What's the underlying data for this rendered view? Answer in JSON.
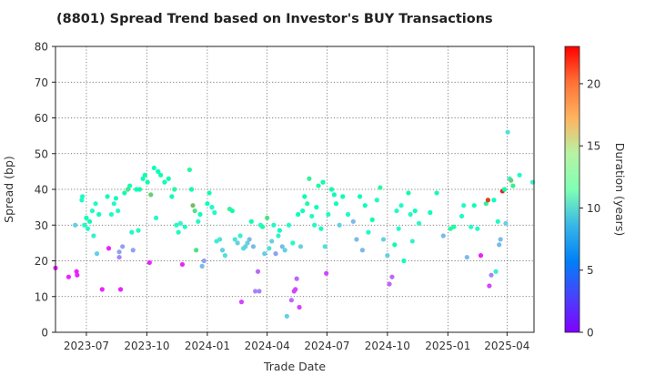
{
  "chart_data": {
    "type": "scatter",
    "title": "(8801)   Spread Trend based on Investor's BUY Transactions",
    "xlabel": "Trade Date",
    "ylabel": "Spread (bp)",
    "colorbar_label": "Duration (years)",
    "ylim": [
      0,
      80
    ],
    "xlim": [
      "2023-05-15",
      "2025-05-12"
    ],
    "yticks": [
      0,
      10,
      20,
      30,
      40,
      50,
      60,
      70,
      80
    ],
    "xticks": [
      {
        "date": "2023-07-01",
        "label": "2023-07"
      },
      {
        "date": "2023-10-01",
        "label": "2023-10"
      },
      {
        "date": "2024-01-01",
        "label": "2024-01"
      },
      {
        "date": "2024-04-01",
        "label": "2024-04"
      },
      {
        "date": "2024-07-01",
        "label": "2024-07"
      },
      {
        "date": "2024-10-01",
        "label": "2024-10"
      },
      {
        "date": "2025-01-01",
        "label": "2025-01"
      },
      {
        "date": "2025-04-01",
        "label": "2025-04"
      }
    ],
    "color_range": [
      0,
      23
    ],
    "colorbar_ticks": [
      0,
      5,
      10,
      15,
      20
    ],
    "colormap": "rainbow",
    "grid": true,
    "points": [
      [
        "2023-05-15",
        18,
        1
      ],
      [
        "2023-06-04",
        15.5,
        1
      ],
      [
        "2023-06-14",
        30,
        7
      ],
      [
        "2023-06-16",
        17,
        1
      ],
      [
        "2023-06-17",
        16,
        1
      ],
      [
        "2023-06-24",
        37,
        10
      ],
      [
        "2023-06-25",
        38,
        10
      ],
      [
        "2023-06-28",
        30,
        10
      ],
      [
        "2023-07-01",
        32,
        11
      ],
      [
        "2023-07-03",
        29,
        10
      ],
      [
        "2023-07-06",
        31,
        12
      ],
      [
        "2023-07-10",
        34,
        10
      ],
      [
        "2023-07-12",
        27,
        9
      ],
      [
        "2023-07-15",
        36,
        10
      ],
      [
        "2023-07-17",
        22,
        7
      ],
      [
        "2023-07-20",
        33,
        11
      ],
      [
        "2023-07-25",
        12,
        1
      ],
      [
        "2023-08-02",
        38,
        11
      ],
      [
        "2023-08-04",
        23.5,
        1
      ],
      [
        "2023-08-08",
        33,
        10
      ],
      [
        "2023-08-12",
        36,
        10
      ],
      [
        "2023-08-15",
        37.5,
        11
      ],
      [
        "2023-08-18",
        34,
        10
      ],
      [
        "2023-08-20",
        22.5,
        5
      ],
      [
        "2023-08-20",
        21,
        4
      ],
      [
        "2023-08-22",
        12,
        1
      ],
      [
        "2023-08-25",
        24,
        5
      ],
      [
        "2023-08-28",
        39,
        12
      ],
      [
        "2023-09-02",
        40,
        15
      ],
      [
        "2023-09-05",
        41,
        11
      ],
      [
        "2023-09-08",
        28,
        10
      ],
      [
        "2023-09-10",
        23,
        5
      ],
      [
        "2023-09-15",
        40,
        11
      ],
      [
        "2023-09-18",
        28.5,
        10
      ],
      [
        "2023-09-20",
        40,
        12
      ],
      [
        "2023-09-25",
        43,
        11
      ],
      [
        "2023-09-28",
        44,
        12
      ],
      [
        "2023-10-02",
        42,
        12
      ],
      [
        "2023-10-05",
        19.5,
        1
      ],
      [
        "2023-10-07",
        38.5,
        16
      ],
      [
        "2023-10-12",
        46,
        11
      ],
      [
        "2023-10-15",
        32,
        10
      ],
      [
        "2023-10-18",
        45,
        11
      ],
      [
        "2023-10-22",
        44,
        12
      ],
      [
        "2023-10-28",
        42,
        11
      ],
      [
        "2023-11-03",
        43,
        12
      ],
      [
        "2023-11-08",
        38,
        11
      ],
      [
        "2023-11-12",
        40,
        13
      ],
      [
        "2023-11-15",
        30,
        10
      ],
      [
        "2023-11-18",
        28,
        10
      ],
      [
        "2023-11-21",
        30.5,
        9
      ],
      [
        "2023-11-24",
        19,
        1
      ],
      [
        "2023-11-28",
        29.5,
        10
      ],
      [
        "2023-12-05",
        45.5,
        13
      ],
      [
        "2023-12-08",
        40,
        12
      ],
      [
        "2023-12-10",
        35.5,
        17
      ],
      [
        "2023-12-13",
        34,
        15
      ],
      [
        "2023-12-15",
        23,
        15
      ],
      [
        "2023-12-18",
        31,
        10
      ],
      [
        "2023-12-21",
        33,
        11
      ],
      [
        "2023-12-24",
        18.5,
        6
      ],
      [
        "2023-12-27",
        20,
        5
      ],
      [
        "2024-01-01",
        36,
        11
      ],
      [
        "2024-01-04",
        39,
        12
      ],
      [
        "2024-01-08",
        35,
        10
      ],
      [
        "2024-01-12",
        33.5,
        10
      ],
      [
        "2024-01-15",
        25.5,
        9
      ],
      [
        "2024-01-20",
        26,
        8
      ],
      [
        "2024-01-24",
        23,
        7
      ],
      [
        "2024-01-28",
        21.5,
        8
      ],
      [
        "2024-02-04",
        34.5,
        14
      ],
      [
        "2024-02-08",
        34,
        12
      ],
      [
        "2024-02-12",
        26,
        8
      ],
      [
        "2024-02-16",
        25,
        7
      ],
      [
        "2024-02-20",
        27,
        9
      ],
      [
        "2024-02-22",
        8.5,
        2
      ],
      [
        "2024-02-25",
        23.5,
        8
      ],
      [
        "2024-02-28",
        24,
        7
      ],
      [
        "2024-03-02",
        25,
        7
      ],
      [
        "2024-03-05",
        26,
        6
      ],
      [
        "2024-03-08",
        31,
        12
      ],
      [
        "2024-03-11",
        24,
        6
      ],
      [
        "2024-03-14",
        11.5,
        4
      ],
      [
        "2024-03-18",
        17,
        3
      ],
      [
        "2024-03-20",
        11.5,
        4
      ],
      [
        "2024-03-22",
        30,
        10
      ],
      [
        "2024-03-25",
        29.5,
        13
      ],
      [
        "2024-03-28",
        22,
        7
      ],
      [
        "2024-04-01",
        32,
        15
      ],
      [
        "2024-04-04",
        23.5,
        8
      ],
      [
        "2024-04-08",
        25.5,
        7
      ],
      [
        "2024-04-11",
        30,
        10
      ],
      [
        "2024-04-14",
        22,
        5
      ],
      [
        "2024-04-18",
        27,
        9
      ],
      [
        "2024-04-20",
        28.5,
        11
      ],
      [
        "2024-04-24",
        24,
        6
      ],
      [
        "2024-04-28",
        23,
        7
      ],
      [
        "2024-05-01",
        4.5,
        7
      ],
      [
        "2024-05-04",
        30,
        10
      ],
      [
        "2024-05-08",
        9,
        3
      ],
      [
        "2024-05-10",
        25,
        10
      ],
      [
        "2024-05-12",
        11.5,
        2
      ],
      [
        "2024-05-14",
        12,
        2
      ],
      [
        "2024-05-16",
        15,
        3
      ],
      [
        "2024-05-18",
        33,
        11
      ],
      [
        "2024-05-20",
        7,
        2
      ],
      [
        "2024-05-22",
        24,
        7
      ],
      [
        "2024-05-25",
        34,
        11
      ],
      [
        "2024-05-28",
        38,
        12
      ],
      [
        "2024-06-01",
        36,
        13
      ],
      [
        "2024-06-04",
        43,
        14
      ],
      [
        "2024-06-08",
        32.5,
        10
      ],
      [
        "2024-06-12",
        30,
        10
      ],
      [
        "2024-06-15",
        35,
        11
      ],
      [
        "2024-06-18",
        41,
        13
      ],
      [
        "2024-06-22",
        29,
        11
      ],
      [
        "2024-06-25",
        42,
        12
      ],
      [
        "2024-06-28",
        24,
        8
      ],
      [
        "2024-06-30",
        16.5,
        2
      ],
      [
        "2024-07-03",
        33,
        10
      ],
      [
        "2024-07-08",
        40,
        12
      ],
      [
        "2024-07-12",
        38.5,
        11
      ],
      [
        "2024-07-15",
        36,
        11
      ],
      [
        "2024-07-20",
        30,
        7
      ],
      [
        "2024-07-25",
        38,
        12
      ],
      [
        "2024-08-02",
        33,
        10
      ],
      [
        "2024-08-10",
        31,
        6
      ],
      [
        "2024-08-15",
        26,
        6
      ],
      [
        "2024-08-20",
        38,
        11
      ],
      [
        "2024-08-24",
        23,
        6
      ],
      [
        "2024-08-28",
        35.5,
        11
      ],
      [
        "2024-09-02",
        28,
        10
      ],
      [
        "2024-09-08",
        31.5,
        12
      ],
      [
        "2024-09-15",
        37,
        10
      ],
      [
        "2024-09-20",
        40.5,
        13
      ],
      [
        "2024-09-25",
        26,
        7
      ],
      [
        "2024-10-01",
        21.5,
        7
      ],
      [
        "2024-10-04",
        13.5,
        3
      ],
      [
        "2024-10-08",
        15.5,
        3
      ],
      [
        "2024-10-12",
        24.5,
        12
      ],
      [
        "2024-10-15",
        34,
        10
      ],
      [
        "2024-10-18",
        29,
        10
      ],
      [
        "2024-10-22",
        35.5,
        10
      ],
      [
        "2024-10-26",
        20,
        11
      ],
      [
        "2024-11-02",
        39,
        12
      ],
      [
        "2024-11-05",
        33,
        10
      ],
      [
        "2024-11-08",
        25.5,
        9
      ],
      [
        "2024-11-12",
        34,
        11
      ],
      [
        "2024-11-18",
        30.5,
        10
      ],
      [
        "2024-12-05",
        33.5,
        11
      ],
      [
        "2024-12-15",
        39,
        11
      ],
      [
        "2024-12-25",
        27,
        6
      ],
      [
        "2025-01-05",
        29,
        13
      ],
      [
        "2025-01-10",
        29.5,
        13
      ],
      [
        "2025-01-22",
        32.5,
        10
      ],
      [
        "2025-01-25",
        35.5,
        10
      ],
      [
        "2025-01-30",
        21,
        6
      ],
      [
        "2025-02-05",
        29.5,
        10
      ],
      [
        "2025-02-10",
        35.5,
        11
      ],
      [
        "2025-02-15",
        29,
        10
      ],
      [
        "2025-02-20",
        21.5,
        1
      ],
      [
        "2025-02-28",
        36,
        14
      ],
      [
        "2025-03-03",
        37,
        21
      ],
      [
        "2025-03-05",
        13,
        2
      ],
      [
        "2025-03-08",
        16,
        4
      ],
      [
        "2025-03-12",
        37,
        11
      ],
      [
        "2025-03-15",
        17,
        9
      ],
      [
        "2025-03-18",
        31,
        10
      ],
      [
        "2025-03-20",
        24.5,
        6
      ],
      [
        "2025-03-22",
        26,
        6
      ],
      [
        "2025-03-25",
        39.5,
        22
      ],
      [
        "2025-03-28",
        40,
        12
      ],
      [
        "2025-03-30",
        30.5,
        7
      ],
      [
        "2025-04-02",
        56,
        8
      ],
      [
        "2025-04-05",
        43,
        9
      ],
      [
        "2025-04-07",
        42.5,
        16
      ],
      [
        "2025-04-10",
        41,
        14
      ],
      [
        "2025-04-20",
        44,
        10
      ],
      [
        "2025-05-10",
        42,
        9
      ]
    ]
  }
}
